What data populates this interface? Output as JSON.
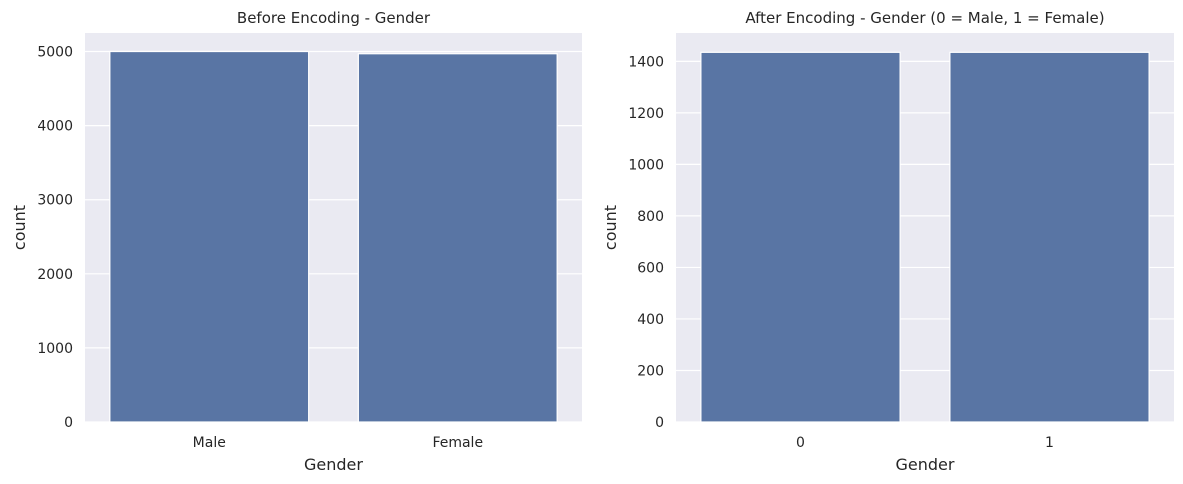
{
  "chart_data": [
    {
      "type": "bar",
      "title": "Before Encoding - Gender",
      "xlabel": "Gender",
      "ylabel": "count",
      "categories": [
        "Male",
        "Female"
      ],
      "values": [
        5000,
        4970
      ],
      "ylim": [
        0,
        5250
      ],
      "yticks": [
        0,
        1000,
        2000,
        3000,
        4000,
        5000
      ],
      "grid": true,
      "bar_color": "#5975a4",
      "background": "#eaeaf2"
    },
    {
      "type": "bar",
      "title": "After Encoding - Gender (0 = Male, 1 = Female)",
      "xlabel": "Gender",
      "ylabel": "count",
      "categories": [
        "0",
        "1"
      ],
      "values": [
        1435,
        1435
      ],
      "ylim": [
        0,
        1510
      ],
      "yticks": [
        0,
        200,
        400,
        600,
        800,
        1000,
        1200,
        1400
      ],
      "grid": true,
      "bar_color": "#5975a4",
      "background": "#eaeaf2"
    }
  ]
}
